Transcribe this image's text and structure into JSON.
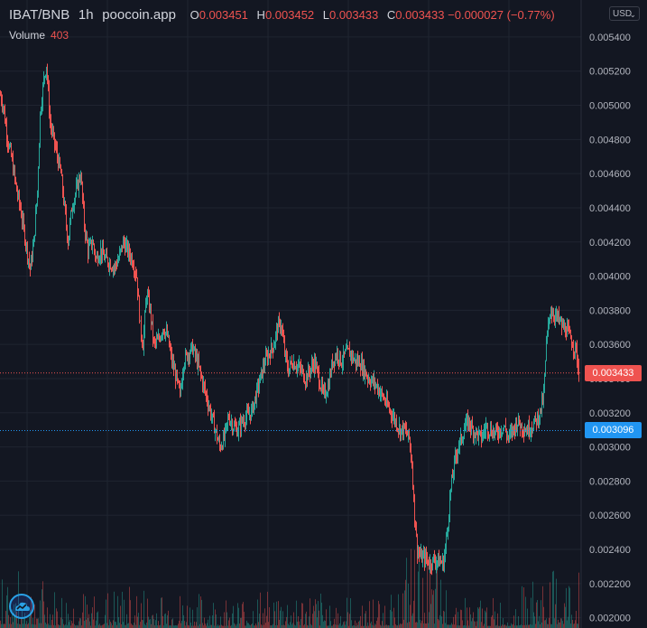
{
  "legend": {
    "symbol": "IBAT/BNB",
    "interval": "1h",
    "source": "poocoin.app",
    "o_label": "O",
    "o_value": "0.003451",
    "h_label": "H",
    "h_value": "0.003452",
    "l_label": "L",
    "l_value": "0.003433",
    "c_label": "C",
    "c_value": "0.003433",
    "change": "−0.000027 (−0.77%)"
  },
  "volume": {
    "label": "Volume",
    "value": "403"
  },
  "currency": {
    "label": "USD",
    "chevron": "⌄"
  },
  "price_tags": {
    "current": {
      "value": "0.003433",
      "color": "#ef5350"
    },
    "reference": {
      "value": "0.003096",
      "color": "#2196f3"
    }
  },
  "logo": {
    "icon": "tradingview-cloud-icon"
  },
  "colors": {
    "up": "#26a69a",
    "down": "#ef5350",
    "background": "#131722",
    "grid": "#1f2430",
    "axis_text": "#b2b5be"
  },
  "chart_data": {
    "type": "candlestick",
    "title": "",
    "xlabel": "",
    "ylabel": "",
    "ylim": [
      0.00194,
      0.0055
    ],
    "grid": true,
    "y_ticks": [
      "0.005400",
      "0.005200",
      "0.005000",
      "0.004800",
      "0.004600",
      "0.004400",
      "0.004200",
      "0.004000",
      "0.003800",
      "0.003600",
      "0.003400",
      "0.003200",
      "0.003000",
      "0.002800",
      "0.002600",
      "0.002400",
      "0.002200",
      "0.002000"
    ],
    "price_path": [
      [
        0,
        0.00506
      ],
      [
        3,
        0.005
      ],
      [
        8,
        0.0048
      ],
      [
        12,
        0.0047
      ],
      [
        18,
        0.0045
      ],
      [
        22,
        0.0044
      ],
      [
        28,
        0.0042
      ],
      [
        33,
        0.00404
      ],
      [
        37,
        0.0042
      ],
      [
        41,
        0.0045
      ],
      [
        44,
        0.00495
      ],
      [
        48,
        0.00515
      ],
      [
        51,
        0.00524
      ],
      [
        55,
        0.0049
      ],
      [
        59,
        0.0048
      ],
      [
        63,
        0.0047
      ],
      [
        67,
        0.0046
      ],
      [
        71,
        0.0044
      ],
      [
        75,
        0.0042
      ],
      [
        79,
        0.0044
      ],
      [
        84,
        0.0045
      ],
      [
        89,
        0.0046
      ],
      [
        93,
        0.0043
      ],
      [
        97,
        0.00415
      ],
      [
        102,
        0.0042
      ],
      [
        106,
        0.0041
      ],
      [
        111,
        0.00415
      ],
      [
        116,
        0.0041
      ],
      [
        121,
        0.00408
      ],
      [
        126,
        0.00405
      ],
      [
        131,
        0.0041
      ],
      [
        136,
        0.0042
      ],
      [
        141,
        0.00415
      ],
      [
        146,
        0.0041
      ],
      [
        151,
        0.004
      ],
      [
        155,
        0.0037
      ],
      [
        158,
        0.0036
      ],
      [
        162,
        0.0039
      ],
      [
        166,
        0.0038
      ],
      [
        170,
        0.0036
      ],
      [
        175,
        0.00362
      ],
      [
        180,
        0.0037
      ],
      [
        185,
        0.00365
      ],
      [
        190,
        0.0035
      ],
      [
        195,
        0.0034
      ],
      [
        199,
        0.0033
      ],
      [
        203,
        0.0035
      ],
      [
        208,
        0.00355
      ],
      [
        213,
        0.00358
      ],
      [
        218,
        0.0035
      ],
      [
        223,
        0.0034
      ],
      [
        228,
        0.0033
      ],
      [
        233,
        0.0032
      ],
      [
        238,
        0.0031
      ],
      [
        243,
        0.003
      ],
      [
        248,
        0.00305
      ],
      [
        253,
        0.00318
      ],
      [
        258,
        0.00312
      ],
      [
        263,
        0.0031
      ],
      [
        268,
        0.00315
      ],
      [
        273,
        0.00318
      ],
      [
        278,
        0.0032
      ],
      [
        283,
        0.0033
      ],
      [
        288,
        0.0034
      ],
      [
        293,
        0.0035
      ],
      [
        298,
        0.00355
      ],
      [
        303,
        0.0036
      ],
      [
        307,
        0.0037
      ],
      [
        311,
        0.00372
      ],
      [
        315,
        0.00355
      ],
      [
        319,
        0.00345
      ],
      [
        323,
        0.0035
      ],
      [
        328,
        0.00348
      ],
      [
        333,
        0.00345
      ],
      [
        338,
        0.0034
      ],
      [
        343,
        0.00345
      ],
      [
        348,
        0.0035
      ],
      [
        353,
        0.0034
      ],
      [
        358,
        0.0033
      ],
      [
        363,
        0.00335
      ],
      [
        368,
        0.0035
      ],
      [
        373,
        0.00355
      ],
      [
        378,
        0.0035
      ],
      [
        383,
        0.00355
      ],
      [
        388,
        0.00355
      ],
      [
        393,
        0.0035
      ],
      [
        398,
        0.0035
      ],
      [
        403,
        0.00345
      ],
      [
        408,
        0.0034
      ],
      [
        413,
        0.00338
      ],
      [
        418,
        0.00335
      ],
      [
        423,
        0.0033
      ],
      [
        428,
        0.00325
      ],
      [
        433,
        0.0032
      ],
      [
        438,
        0.00315
      ],
      [
        443,
        0.0031
      ],
      [
        448,
        0.0031
      ],
      [
        453,
        0.00305
      ],
      [
        456,
        0.0029
      ],
      [
        459,
        0.0026
      ],
      [
        462,
        0.0024
      ],
      [
        466,
        0.00235
      ],
      [
        471,
        0.00235
      ],
      [
        476,
        0.00232
      ],
      [
        481,
        0.00234
      ],
      [
        486,
        0.00233
      ],
      [
        491,
        0.00232
      ],
      [
        495,
        0.0025
      ],
      [
        499,
        0.00275
      ],
      [
        503,
        0.0029
      ],
      [
        507,
        0.003
      ],
      [
        511,
        0.00305
      ],
      [
        515,
        0.00312
      ],
      [
        519,
        0.00315
      ],
      [
        523,
        0.0031
      ],
      [
        528,
        0.00308
      ],
      [
        533,
        0.00305
      ],
      [
        538,
        0.00312
      ],
      [
        543,
        0.0031
      ],
      [
        548,
        0.00308
      ],
      [
        553,
        0.0031
      ],
      [
        558,
        0.00312
      ],
      [
        563,
        0.00305
      ],
      [
        568,
        0.0031
      ],
      [
        573,
        0.00315
      ],
      [
        578,
        0.00312
      ],
      [
        583,
        0.0031
      ],
      [
        588,
        0.00312
      ],
      [
        593,
        0.00315
      ],
      [
        598,
        0.0032
      ],
      [
        602,
        0.0033
      ],
      [
        605,
        0.0036
      ],
      [
        609,
        0.0038
      ],
      [
        613,
        0.00378
      ],
      [
        618,
        0.00375
      ],
      [
        623,
        0.0037
      ],
      [
        628,
        0.00368
      ],
      [
        633,
        0.00362
      ],
      [
        638,
        0.00356
      ],
      [
        641,
        0.003433
      ]
    ],
    "volume_ylim": [
      0,
      1200
    ],
    "volume_profile": [
      [
        0,
        300
      ],
      [
        40,
        260
      ],
      [
        60,
        200
      ],
      [
        100,
        180
      ],
      [
        150,
        220
      ],
      [
        200,
        180
      ],
      [
        250,
        160
      ],
      [
        300,
        200
      ],
      [
        350,
        180
      ],
      [
        400,
        150
      ],
      [
        440,
        200
      ],
      [
        455,
        450
      ],
      [
        470,
        350
      ],
      [
        500,
        220
      ],
      [
        520,
        160
      ],
      [
        560,
        150
      ],
      [
        600,
        280
      ],
      [
        640,
        300
      ]
    ]
  }
}
